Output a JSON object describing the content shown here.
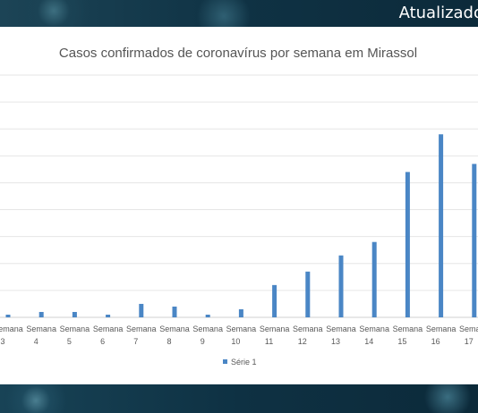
{
  "banner": {
    "text": "Atualizado"
  },
  "chart_data": {
    "type": "bar",
    "title": "Casos confirmados de coronavírus por semana em Mirassol",
    "category_prefix": "Semana",
    "categories": [
      "3",
      "4",
      "5",
      "6",
      "7",
      "8",
      "9",
      "10",
      "11",
      "12",
      "13",
      "14",
      "15",
      "16",
      "17"
    ],
    "series": [
      {
        "name": "Série 1",
        "values": [
          1,
          2,
          2,
          1,
          5,
          4,
          1,
          3,
          12,
          17,
          23,
          28,
          54,
          68,
          57
        ],
        "color": "#4a86c5"
      }
    ],
    "ylim": [
      0,
      90
    ],
    "ytick_step": 10,
    "grid": true,
    "legend_position": "bottom"
  }
}
